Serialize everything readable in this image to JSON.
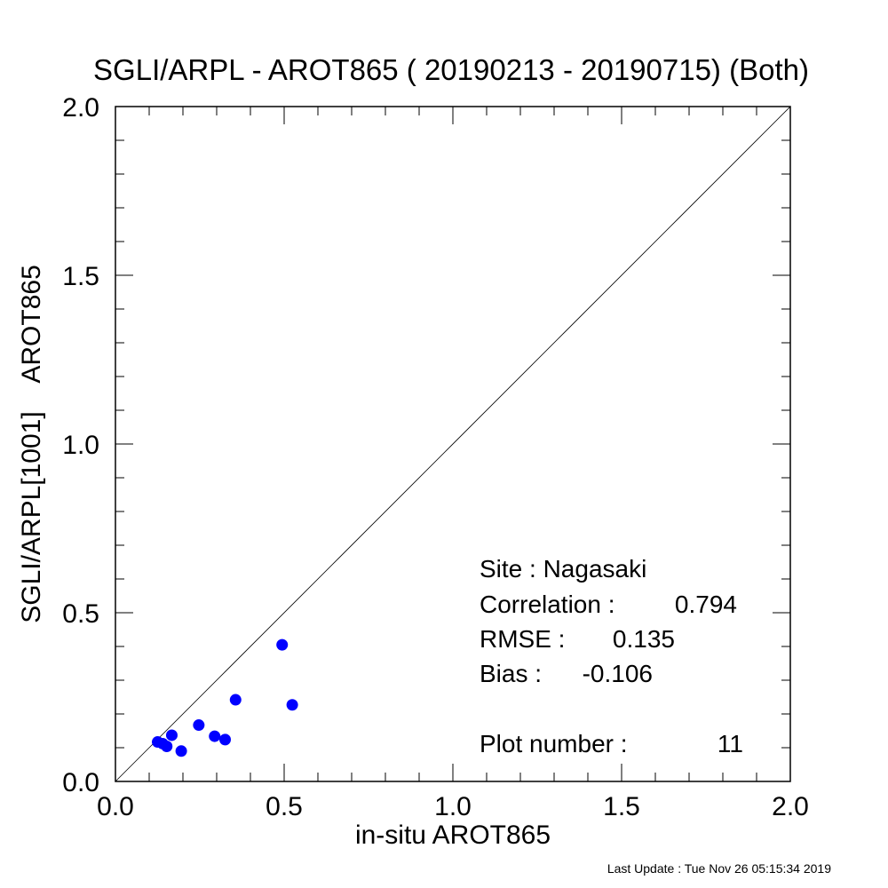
{
  "chart_data": {
    "type": "scatter",
    "title": "SGLI/ARPL - AROT865 ( 20190213 - 20190715) (Both)",
    "xlabel": "in-situ AROT865",
    "ylabel": "SGLI/ARPL[1001]    AROT865",
    "xlim": [
      0.0,
      2.0
    ],
    "ylim": [
      0.0,
      2.0
    ],
    "xticks": [
      "0.0",
      "0.5",
      "1.0",
      "1.5",
      "2.0"
    ],
    "yticks": [
      "0.0",
      "0.5",
      "1.0",
      "1.5",
      "2.0"
    ],
    "grid": false,
    "reference_line": "1:1",
    "point_color": "#0000ff",
    "points": [
      {
        "x": 0.125,
        "y": 0.117
      },
      {
        "x": 0.14,
        "y": 0.112
      },
      {
        "x": 0.152,
        "y": 0.104
      },
      {
        "x": 0.167,
        "y": 0.137
      },
      {
        "x": 0.195,
        "y": 0.09
      },
      {
        "x": 0.247,
        "y": 0.167
      },
      {
        "x": 0.294,
        "y": 0.134
      },
      {
        "x": 0.325,
        "y": 0.124
      },
      {
        "x": 0.356,
        "y": 0.242
      },
      {
        "x": 0.494,
        "y": 0.405
      },
      {
        "x": 0.524,
        "y": 0.227
      }
    ],
    "stats": [
      {
        "label": "Site : Nagasaki",
        "value": ""
      },
      {
        "label": "Correlation :",
        "value": "0.794"
      },
      {
        "label": "RMSE :",
        "value": "0.135"
      },
      {
        "label": "Bias :",
        "value": "-0.106"
      },
      {
        "label": "Plot number :",
        "value": "11"
      }
    ]
  },
  "footer": "Last Update : Tue Nov 26 05:15:34 2019"
}
